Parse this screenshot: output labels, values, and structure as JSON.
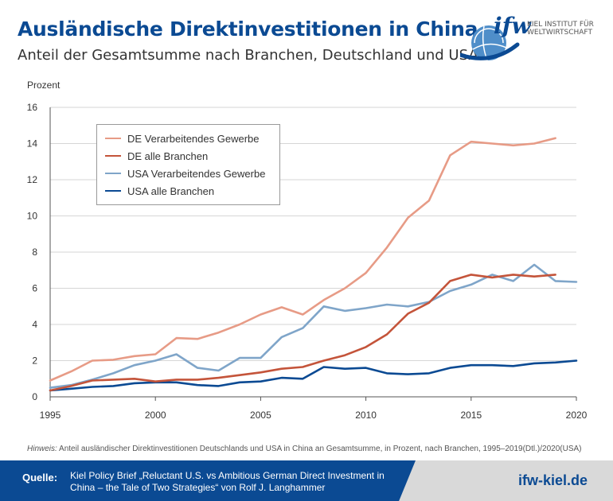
{
  "header": {
    "title": "Ausländische Direktinvestitionen in China",
    "subtitle": "Anteil der Gesamtsumme nach Branchen, Deutschland und USA"
  },
  "logo": {
    "brand": "ifw",
    "line1": "KIEL INSTITUT FÜR",
    "line2": "WELTWIRTSCHAFT"
  },
  "footer": {
    "hinweis_label": "Hinweis:",
    "hinweis_text": "Anteil ausländischer Direktinvestitionen Deutschlands und USA in China an Gesamtsumme, in Prozent, nach Branchen, 1995–2019(Dtl.)/2020(USA)",
    "quelle_label": "Quelle:",
    "quelle_text": "Kiel Policy Brief „Reluctant U.S. vs Ambitious German Direct Investment in China – the Tale of Two Strategies“ von Rolf J. Langhammer",
    "site": "ifw-kiel.de"
  },
  "colors": {
    "brand": "#0b4a93",
    "de_manuf": "#e79b86",
    "de_all": "#c4543a",
    "us_manuf": "#7fa5c9",
    "us_all": "#0b4a93"
  },
  "chart_data": {
    "type": "line",
    "ylabel": "Prozent",
    "xlabel": "",
    "xlim": [
      1995,
      2020
    ],
    "ylim": [
      0,
      16
    ],
    "xticks": [
      1995,
      2000,
      2005,
      2010,
      2015,
      2020
    ],
    "yticks": [
      0,
      2,
      4,
      6,
      8,
      10,
      12,
      14,
      16
    ],
    "grid": "horizontal",
    "legend_position": "top-left",
    "series": [
      {
        "name": "DE  Verarbeitendes Gewerbe",
        "color": "#e79b86",
        "x": [
          1995,
          1996,
          1997,
          1998,
          1999,
          2000,
          2001,
          2002,
          2003,
          2004,
          2005,
          2006,
          2007,
          2008,
          2009,
          2010,
          2011,
          2012,
          2013,
          2014,
          2015,
          2016,
          2017,
          2018,
          2019
        ],
        "y": [
          0.9,
          1.4,
          2.0,
          2.05,
          2.25,
          2.35,
          3.25,
          3.2,
          3.55,
          4.0,
          4.55,
          4.95,
          4.55,
          5.35,
          6.0,
          6.85,
          8.25,
          9.9,
          10.85,
          13.35,
          14.1,
          14.0,
          13.9,
          14.0,
          14.3
        ]
      },
      {
        "name": "DE alle Branchen",
        "color": "#c4543a",
        "x": [
          1995,
          1996,
          1997,
          1998,
          1999,
          2000,
          2001,
          2002,
          2003,
          2004,
          2005,
          2006,
          2007,
          2008,
          2009,
          2010,
          2011,
          2012,
          2013,
          2014,
          2015,
          2016,
          2017,
          2018,
          2019
        ],
        "y": [
          0.35,
          0.6,
          0.9,
          0.95,
          1.0,
          0.85,
          0.95,
          0.95,
          1.05,
          1.2,
          1.35,
          1.55,
          1.65,
          2.0,
          2.3,
          2.75,
          3.45,
          4.6,
          5.2,
          6.4,
          6.75,
          6.6,
          6.75,
          6.65,
          6.75
        ]
      },
      {
        "name": "USA Verarbeitendes Gewerbe",
        "color": "#7fa5c9",
        "x": [
          1995,
          1996,
          1997,
          1998,
          1999,
          2000,
          2001,
          2002,
          2003,
          2004,
          2005,
          2006,
          2007,
          2008,
          2009,
          2010,
          2011,
          2012,
          2013,
          2014,
          2015,
          2016,
          2017,
          2018,
          2019,
          2020
        ],
        "y": [
          0.5,
          0.65,
          0.95,
          1.3,
          1.75,
          2.0,
          2.35,
          1.6,
          1.45,
          2.15,
          2.15,
          3.3,
          3.8,
          5.0,
          4.75,
          4.9,
          5.1,
          5.0,
          5.25,
          5.85,
          6.2,
          6.75,
          6.4,
          7.3,
          6.4,
          6.35
        ]
      },
      {
        "name": "USA alle Branchen",
        "color": "#0b4a93",
        "x": [
          1995,
          1996,
          1997,
          1998,
          1999,
          2000,
          2001,
          2002,
          2003,
          2004,
          2005,
          2006,
          2007,
          2008,
          2009,
          2010,
          2011,
          2012,
          2013,
          2014,
          2015,
          2016,
          2017,
          2018,
          2019,
          2020
        ],
        "y": [
          0.35,
          0.45,
          0.55,
          0.6,
          0.75,
          0.8,
          0.8,
          0.65,
          0.6,
          0.8,
          0.85,
          1.05,
          1.0,
          1.65,
          1.55,
          1.6,
          1.3,
          1.25,
          1.3,
          1.6,
          1.75,
          1.75,
          1.7,
          1.85,
          1.9,
          2.0
        ]
      }
    ]
  }
}
